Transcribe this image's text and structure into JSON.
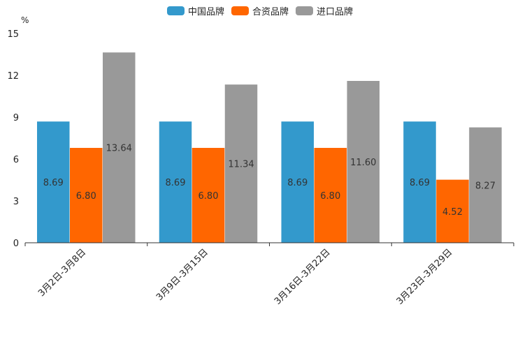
{
  "chart_data": {
    "type": "bar",
    "unit": "%",
    "categories": [
      "3月2日-3月8日",
      "3月9日-3月15日",
      "3月16日-3月22日",
      "3月23日-3月29日"
    ],
    "series": [
      {
        "name": "中国品牌",
        "color": "#3399cc",
        "values": [
          8.69,
          8.69,
          8.69,
          8.69
        ],
        "labels": [
          "8.69",
          "8.69",
          "8.69",
          "8.69"
        ]
      },
      {
        "name": "合资品牌",
        "color": "#ff6600",
        "values": [
          6.8,
          6.8,
          6.8,
          4.52
        ],
        "labels": [
          "6.80",
          "6.80",
          "6.80",
          "4.52"
        ]
      },
      {
        "name": "进口品牌",
        "color": "#999999",
        "values": [
          13.64,
          11.34,
          11.6,
          8.27
        ],
        "labels": [
          "13.64",
          "11.34",
          "11.60",
          "8.27"
        ]
      }
    ],
    "ylim": [
      0,
      15
    ],
    "yticks": [
      "0",
      "3",
      "6",
      "9",
      "12",
      "15"
    ],
    "legend_position": "top-center"
  }
}
